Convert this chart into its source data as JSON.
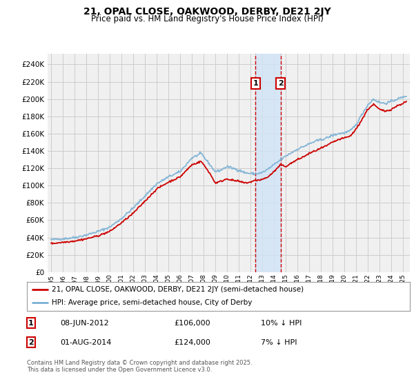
{
  "title": "21, OPAL CLOSE, OAKWOOD, DERBY, DE21 2JY",
  "subtitle": "Price paid vs. HM Land Registry's House Price Index (HPI)",
  "ylim": [
    0,
    252000
  ],
  "yticks": [
    0,
    20000,
    40000,
    60000,
    80000,
    100000,
    120000,
    140000,
    160000,
    180000,
    200000,
    220000,
    240000
  ],
  "xlim_start": 1994.7,
  "xlim_end": 2025.6,
  "transaction1_date": 2012.44,
  "transaction1_price": 106000,
  "transaction2_date": 2014.58,
  "transaction2_price": 124000,
  "legend_line1": "21, OPAL CLOSE, OAKWOOD, DERBY, DE21 2JY (semi-detached house)",
  "legend_line2": "HPI: Average price, semi-detached house, City of Derby",
  "footer": "Contains HM Land Registry data © Crown copyright and database right 2025.\nThis data is licensed under the Open Government Licence v3.0.",
  "line_color_red": "#cc0000",
  "line_color_blue": "#7ab0d4",
  "shade_color": "#d0e4f7",
  "vline_color": "#cc0000",
  "grid_color": "#cccccc",
  "bg_color": "#ffffff",
  "plot_bg_color": "#f0f0f0",
  "hpi_anchors": [
    [
      1995.0,
      37500
    ],
    [
      1996.0,
      38500
    ],
    [
      1997.0,
      40000
    ],
    [
      1998.0,
      43000
    ],
    [
      1999.0,
      47000
    ],
    [
      2000.0,
      52000
    ],
    [
      2001.0,
      62000
    ],
    [
      2002.0,
      74000
    ],
    [
      2003.0,
      88000
    ],
    [
      2004.0,
      102000
    ],
    [
      2005.0,
      110000
    ],
    [
      2006.0,
      116000
    ],
    [
      2007.0,
      132000
    ],
    [
      2007.8,
      137000
    ],
    [
      2008.5,
      125000
    ],
    [
      2009.0,
      116000
    ],
    [
      2009.5,
      118000
    ],
    [
      2010.0,
      122000
    ],
    [
      2010.5,
      120000
    ],
    [
      2011.0,
      118000
    ],
    [
      2011.5,
      115000
    ],
    [
      2012.0,
      114000
    ],
    [
      2012.5,
      113500
    ],
    [
      2013.0,
      115000
    ],
    [
      2013.5,
      119000
    ],
    [
      2014.0,
      124000
    ],
    [
      2014.6,
      130000
    ],
    [
      2015.0,
      134000
    ],
    [
      2015.5,
      138000
    ],
    [
      2016.0,
      142000
    ],
    [
      2016.5,
      145000
    ],
    [
      2017.0,
      148000
    ],
    [
      2017.5,
      151000
    ],
    [
      2018.0,
      153000
    ],
    [
      2018.5,
      155000
    ],
    [
      2019.0,
      158000
    ],
    [
      2019.5,
      160000
    ],
    [
      2020.0,
      161000
    ],
    [
      2020.5,
      163000
    ],
    [
      2021.0,
      170000
    ],
    [
      2021.5,
      182000
    ],
    [
      2022.0,
      193000
    ],
    [
      2022.5,
      200000
    ],
    [
      2023.0,
      196000
    ],
    [
      2023.5,
      195000
    ],
    [
      2024.0,
      197000
    ],
    [
      2024.5,
      200000
    ],
    [
      2025.0,
      202000
    ],
    [
      2025.3,
      204000
    ]
  ],
  "pp_anchors": [
    [
      1995.0,
      33000
    ],
    [
      1996.0,
      34500
    ],
    [
      1997.0,
      36000
    ],
    [
      1998.0,
      38500
    ],
    [
      1999.0,
      42000
    ],
    [
      2000.0,
      47000
    ],
    [
      2001.0,
      57000
    ],
    [
      2002.0,
      68000
    ],
    [
      2003.0,
      82000
    ],
    [
      2004.0,
      96000
    ],
    [
      2005.0,
      104000
    ],
    [
      2006.0,
      110000
    ],
    [
      2007.0,
      124000
    ],
    [
      2007.8,
      128000
    ],
    [
      2008.5,
      115000
    ],
    [
      2009.0,
      103000
    ],
    [
      2009.5,
      105000
    ],
    [
      2010.0,
      108000
    ],
    [
      2010.5,
      106000
    ],
    [
      2011.0,
      105000
    ],
    [
      2011.5,
      103000
    ],
    [
      2012.0,
      104000
    ],
    [
      2012.44,
      106000
    ],
    [
      2013.0,
      107000
    ],
    [
      2013.5,
      110000
    ],
    [
      2014.0,
      116000
    ],
    [
      2014.58,
      124000
    ],
    [
      2015.0,
      122000
    ],
    [
      2015.5,
      126000
    ],
    [
      2016.0,
      130000
    ],
    [
      2016.5,
      133000
    ],
    [
      2017.0,
      137000
    ],
    [
      2017.5,
      140000
    ],
    [
      2018.0,
      143000
    ],
    [
      2018.5,
      146000
    ],
    [
      2019.0,
      150000
    ],
    [
      2019.5,
      153000
    ],
    [
      2020.0,
      155000
    ],
    [
      2020.5,
      157000
    ],
    [
      2021.0,
      165000
    ],
    [
      2021.5,
      176000
    ],
    [
      2022.0,
      188000
    ],
    [
      2022.5,
      194000
    ],
    [
      2023.0,
      188000
    ],
    [
      2023.5,
      186000
    ],
    [
      2024.0,
      188000
    ],
    [
      2024.5,
      192000
    ],
    [
      2025.0,
      195000
    ],
    [
      2025.3,
      197000
    ]
  ]
}
